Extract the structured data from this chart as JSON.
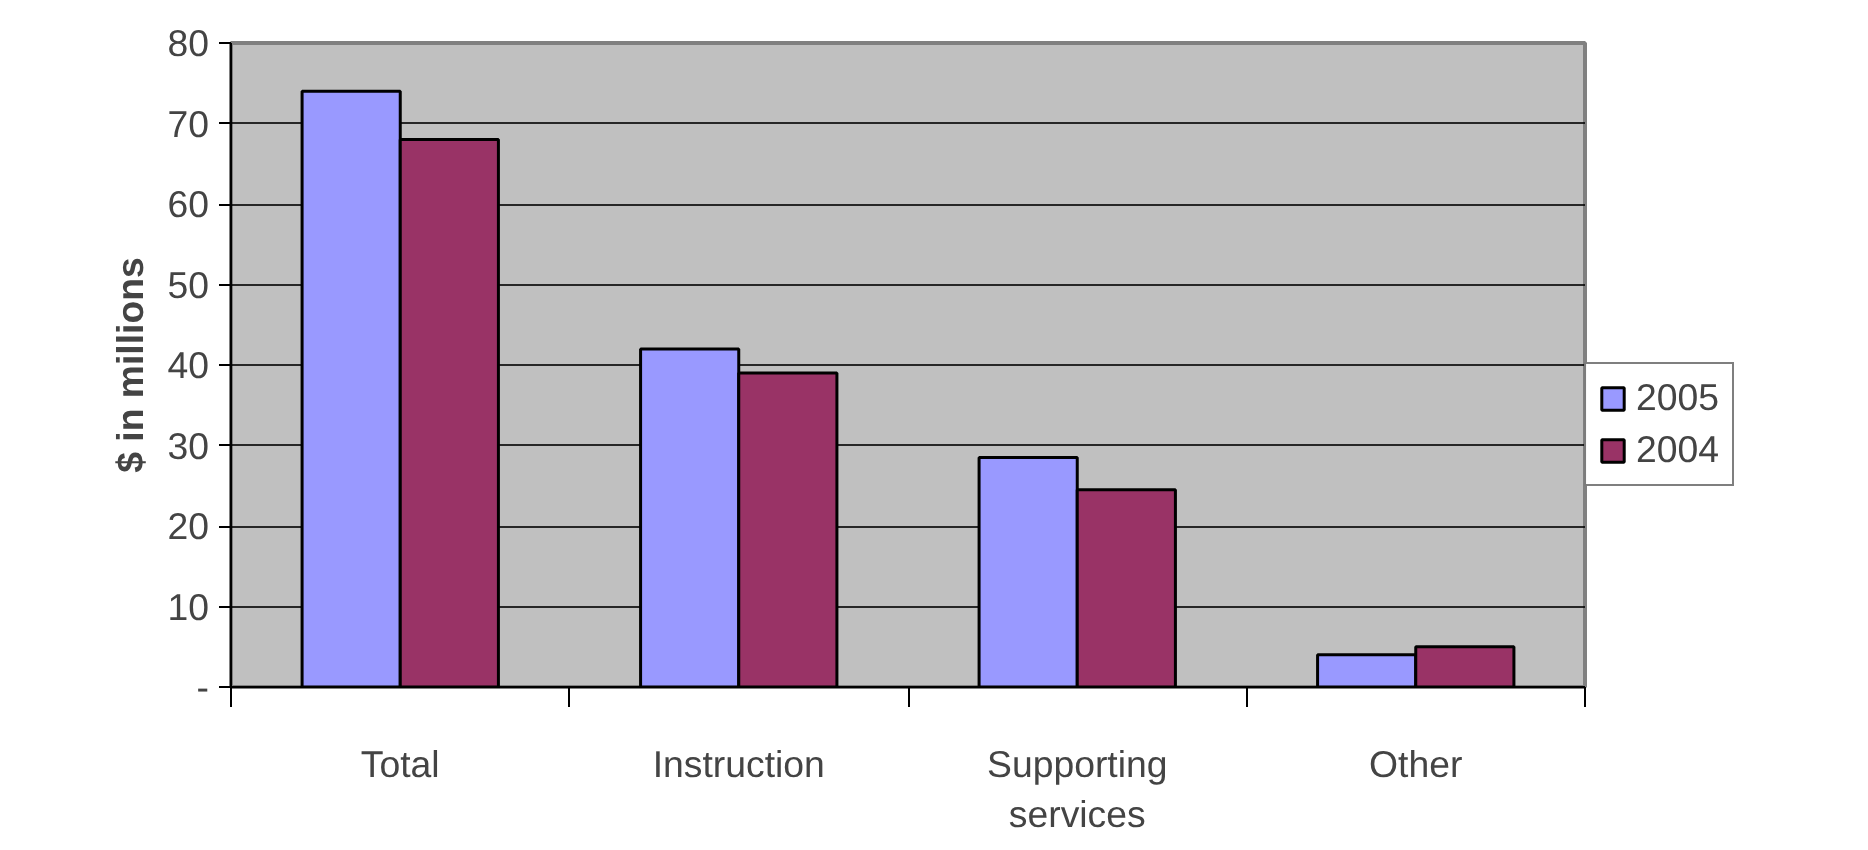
{
  "chart_data": {
    "type": "bar",
    "ylabel": "$ in millions",
    "categories": [
      "Total",
      "Instruction",
      "Supporting services",
      "Other"
    ],
    "series": [
      {
        "name": "2005",
        "color": "#9999ff",
        "values": [
          74,
          42,
          28.5,
          4
        ]
      },
      {
        "name": "2004",
        "color": "#993366",
        "values": [
          68,
          39,
          24.5,
          5
        ]
      }
    ],
    "ylim": [
      0,
      80
    ],
    "yticks": [
      {
        "value": 0,
        "label": "-"
      },
      10,
      20,
      30,
      40,
      50,
      60,
      70,
      80
    ],
    "grid": "y",
    "legend": "right"
  }
}
